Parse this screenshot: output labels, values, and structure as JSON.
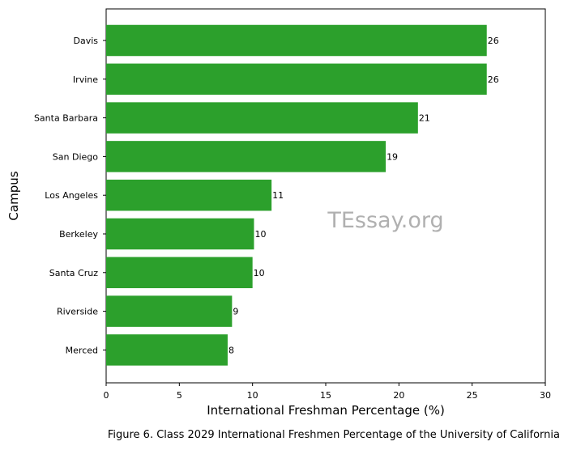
{
  "chart_data": {
    "type": "bar",
    "orientation": "horizontal",
    "categories": [
      "Davis",
      "Irvine",
      "Santa Barbara",
      "San Diego",
      "Los Angeles",
      "Berkeley",
      "Santa Cruz",
      "Riverside",
      "Merced"
    ],
    "values": [
      26,
      26,
      21.3,
      19.1,
      11.3,
      10.1,
      10,
      8.6,
      8.3
    ],
    "value_labels": [
      "26",
      "26",
      "21",
      "19",
      "11",
      "10",
      "10",
      "9",
      "8"
    ],
    "xlabel": "International Freshman Percentage (%)",
    "ylabel": "Campus",
    "xlim": [
      0,
      30
    ],
    "xticks": [
      "0",
      "5",
      "10",
      "15",
      "20",
      "25",
      "30"
    ],
    "bar_color": "#2ca02c",
    "grid": false
  },
  "watermark": "TEssay.org",
  "caption": "Figure 6. Class 2029 International Freshmen Percentage of the University of California"
}
